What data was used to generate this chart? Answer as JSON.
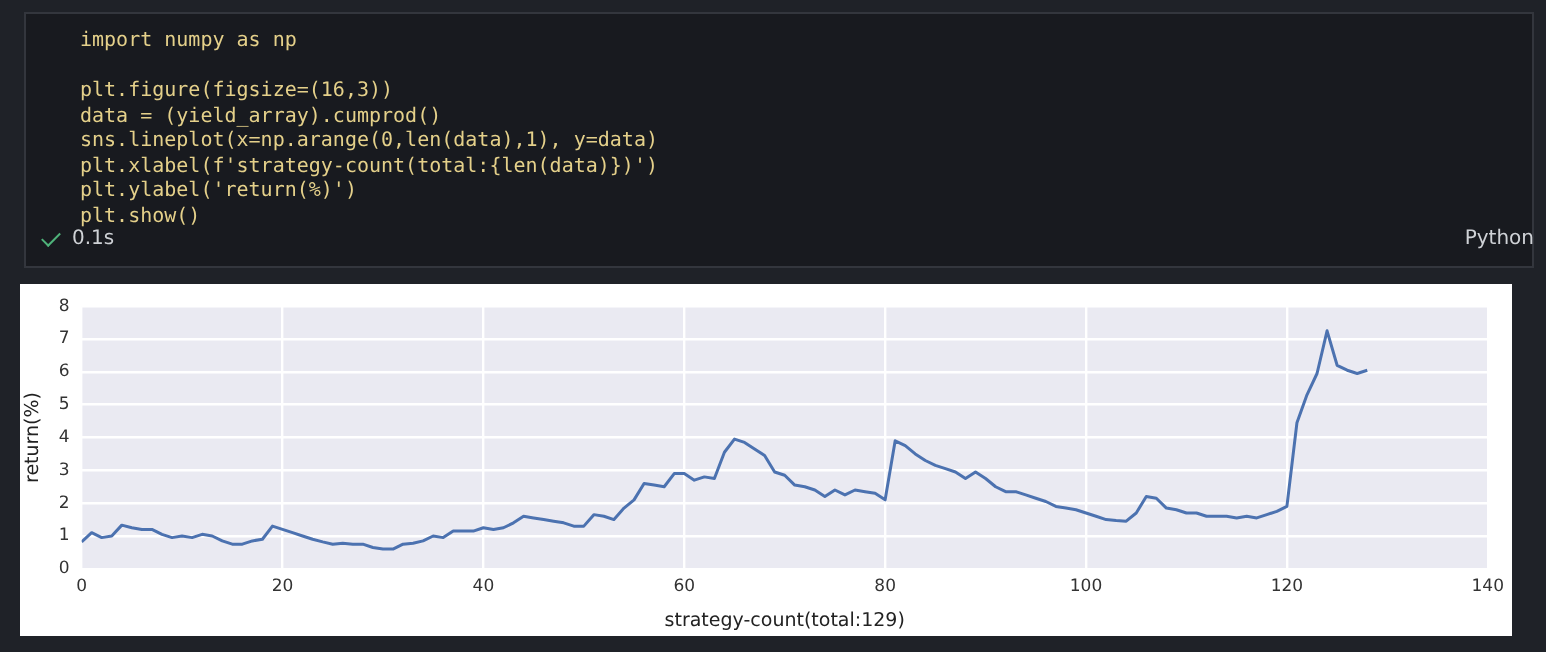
{
  "chart_data": {
    "type": "line",
    "xlabel": "strategy-count(total:129)",
    "ylabel": "return(%)",
    "x": [
      0,
      1,
      2,
      3,
      4,
      5,
      6,
      7,
      8,
      9,
      10,
      11,
      12,
      13,
      14,
      15,
      16,
      17,
      18,
      19,
      20,
      21,
      22,
      23,
      24,
      25,
      26,
      27,
      28,
      29,
      30,
      31,
      32,
      33,
      34,
      35,
      36,
      37,
      38,
      39,
      40,
      41,
      42,
      43,
      44,
      45,
      46,
      47,
      48,
      49,
      50,
      51,
      52,
      53,
      54,
      55,
      56,
      57,
      58,
      59,
      60,
      61,
      62,
      63,
      64,
      65,
      66,
      67,
      68,
      69,
      70,
      71,
      72,
      73,
      74,
      75,
      76,
      77,
      78,
      79,
      80,
      81,
      82,
      83,
      84,
      85,
      86,
      87,
      88,
      89,
      90,
      91,
      92,
      93,
      94,
      95,
      96,
      97,
      98,
      99,
      100,
      101,
      102,
      103,
      104,
      105,
      106,
      107,
      108,
      109,
      110,
      111,
      112,
      113,
      114,
      115,
      116,
      117,
      118,
      119,
      120,
      121,
      122,
      123,
      124,
      125,
      126,
      127,
      128
    ],
    "series": [
      {
        "color": "#4c72b0",
        "values": [
          0.82,
          1.1,
          0.95,
          1.0,
          1.33,
          1.25,
          1.2,
          1.2,
          1.05,
          0.95,
          1.0,
          0.95,
          1.05,
          1.0,
          0.85,
          0.75,
          0.75,
          0.85,
          0.9,
          1.3,
          1.2,
          1.1,
          1.0,
          0.9,
          0.82,
          0.75,
          0.78,
          0.75,
          0.75,
          0.65,
          0.6,
          0.6,
          0.75,
          0.78,
          0.85,
          1.0,
          0.95,
          1.15,
          1.15,
          1.15,
          1.25,
          1.2,
          1.25,
          1.4,
          1.6,
          1.55,
          1.5,
          1.45,
          1.4,
          1.3,
          1.3,
          1.65,
          1.6,
          1.5,
          1.85,
          2.1,
          2.6,
          2.55,
          2.5,
          2.9,
          2.9,
          2.7,
          2.8,
          2.75,
          3.55,
          3.95,
          3.85,
          3.65,
          3.45,
          2.95,
          2.85,
          2.55,
          2.5,
          2.4,
          2.2,
          2.4,
          2.25,
          2.4,
          2.35,
          2.3,
          2.1,
          3.9,
          3.75,
          3.5,
          3.3,
          3.15,
          3.05,
          2.95,
          2.75,
          2.95,
          2.75,
          2.5,
          2.35,
          2.35,
          2.25,
          2.15,
          2.05,
          1.9,
          1.85,
          1.8,
          1.7,
          1.6,
          1.5,
          1.47,
          1.45,
          1.7,
          2.2,
          2.15,
          1.85,
          1.8,
          1.7,
          1.7,
          1.6,
          1.6,
          1.6,
          1.55,
          1.6,
          1.55,
          1.65,
          1.75,
          1.9,
          4.45,
          5.3,
          5.95,
          7.25,
          6.2,
          6.05,
          5.95,
          6.05
        ]
      }
    ],
    "xlim": [
      0,
      140
    ],
    "xticks": [
      0,
      20,
      40,
      60,
      80,
      100,
      120,
      140
    ],
    "ylim": [
      0,
      8
    ],
    "yticks": [
      0,
      1,
      2,
      3,
      4,
      5,
      6,
      7,
      8
    ],
    "grid": true,
    "marker": "none",
    "line_style": "solid",
    "annotations": [
      "import numpy as np",
      "plt.figure(figsize=(16,3))",
      "data = (yield_array).cumprod()",
      "sns.lineplot(x=np.arange(0,len(data),1), y=data)",
      "plt.xlabel(f'strategy-count(total:{len(data)})')",
      "plt.ylabel('return(%)')",
      "plt.show()",
      "0.1s",
      "Python"
    ]
  }
}
